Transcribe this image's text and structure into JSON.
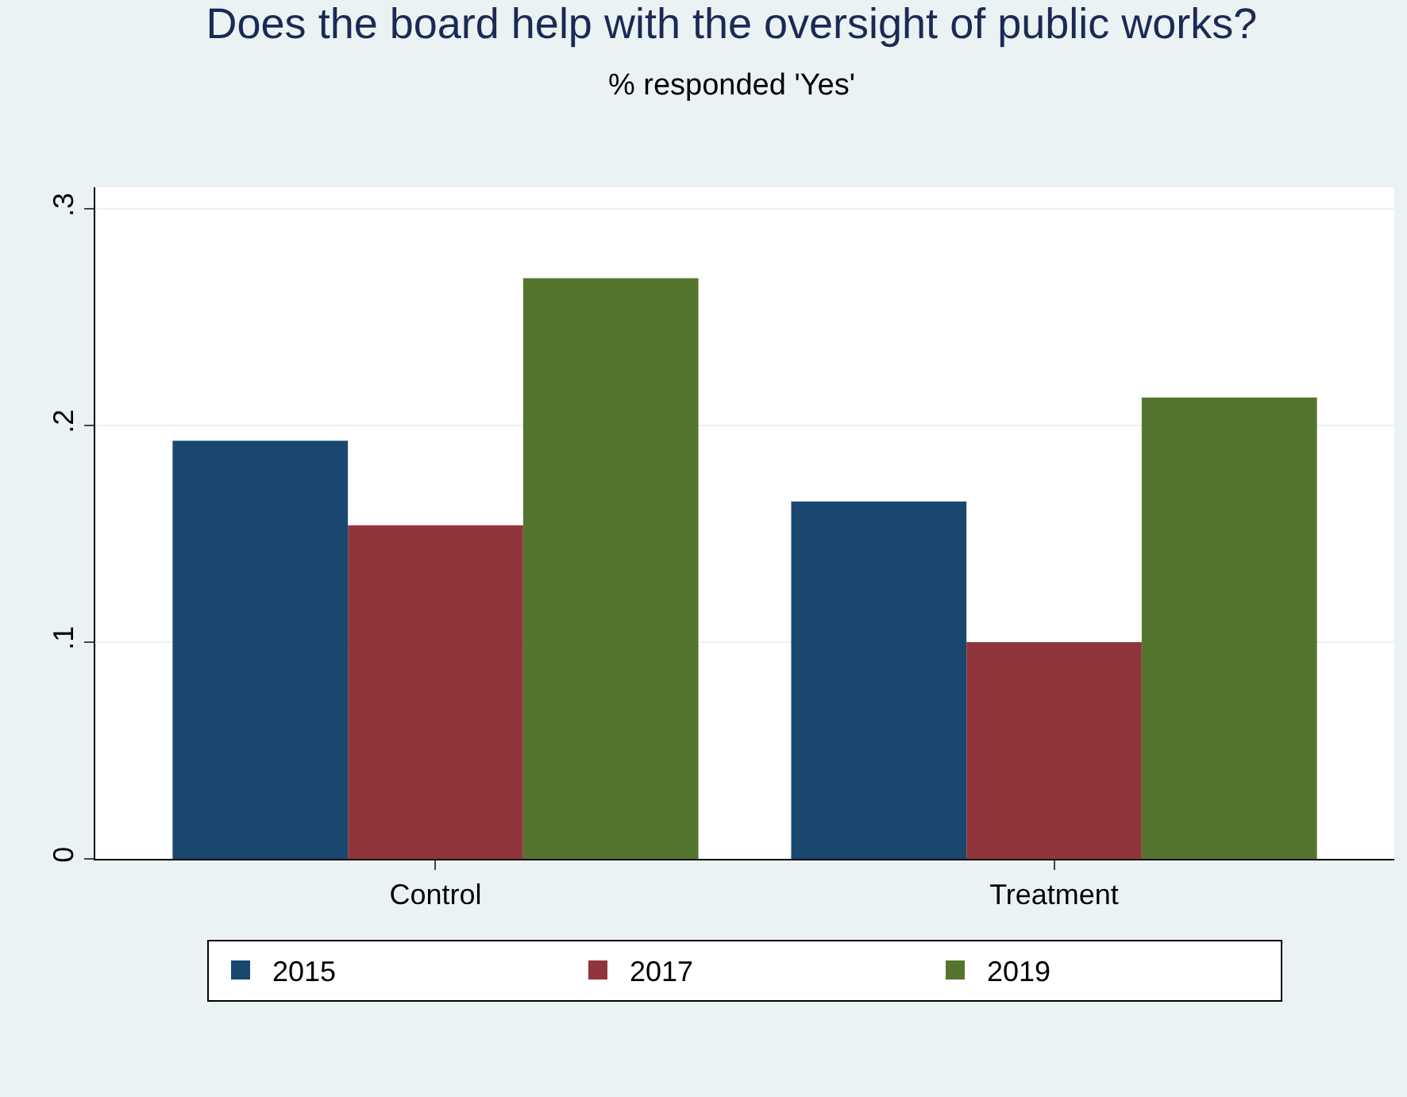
{
  "chart_data": {
    "type": "bar",
    "title": "Does the board help with the oversight of public works?",
    "subtitle": "% responded 'Yes'",
    "categories": [
      "Control",
      "Treatment"
    ],
    "series": [
      {
        "name": "2015",
        "color": "#1a476f",
        "values": [
          0.193,
          0.165
        ]
      },
      {
        "name": "2017",
        "color": "#90353b",
        "values": [
          0.154,
          0.1
        ]
      },
      {
        "name": "2019",
        "color": "#55752f",
        "values": [
          0.268,
          0.213
        ]
      }
    ],
    "ylim": [
      0,
      0.31
    ],
    "yticks": [
      {
        "value": 0,
        "label": "0"
      },
      {
        "value": 0.1,
        "label": ".1"
      },
      {
        "value": 0.2,
        "label": ".2"
      },
      {
        "value": 0.3,
        "label": ".3"
      }
    ],
    "grid": "y",
    "legend": "bottom"
  }
}
